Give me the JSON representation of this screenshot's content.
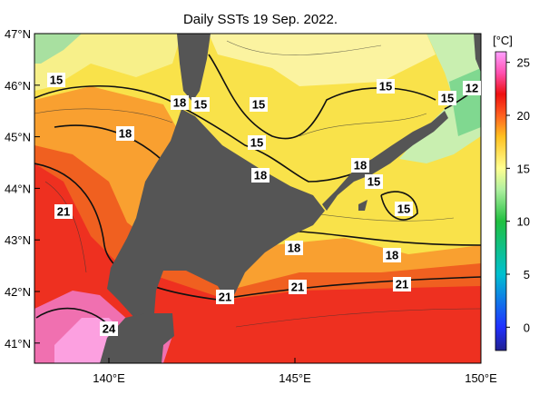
{
  "title": "Daily SSTs 19 Sep. 2022.",
  "lat_labels": [
    "47°N",
    "46°N",
    "45°N",
    "44°N",
    "43°N",
    "42°N",
    "41°N"
  ],
  "lon_labels": [
    "140°E",
    "145°E",
    "150°E"
  ],
  "colorbar": {
    "label": "[°C]",
    "range": [
      -2.2,
      26
    ],
    "ticks": [
      0,
      5,
      10,
      15,
      20,
      25
    ]
  },
  "contour_labels": [
    "15",
    "18",
    "15",
    "15",
    "15",
    "15",
    "12",
    "18",
    "15",
    "18",
    "18",
    "15",
    "15",
    "21",
    "18",
    "18",
    "21",
    "21",
    "21",
    "24"
  ]
}
